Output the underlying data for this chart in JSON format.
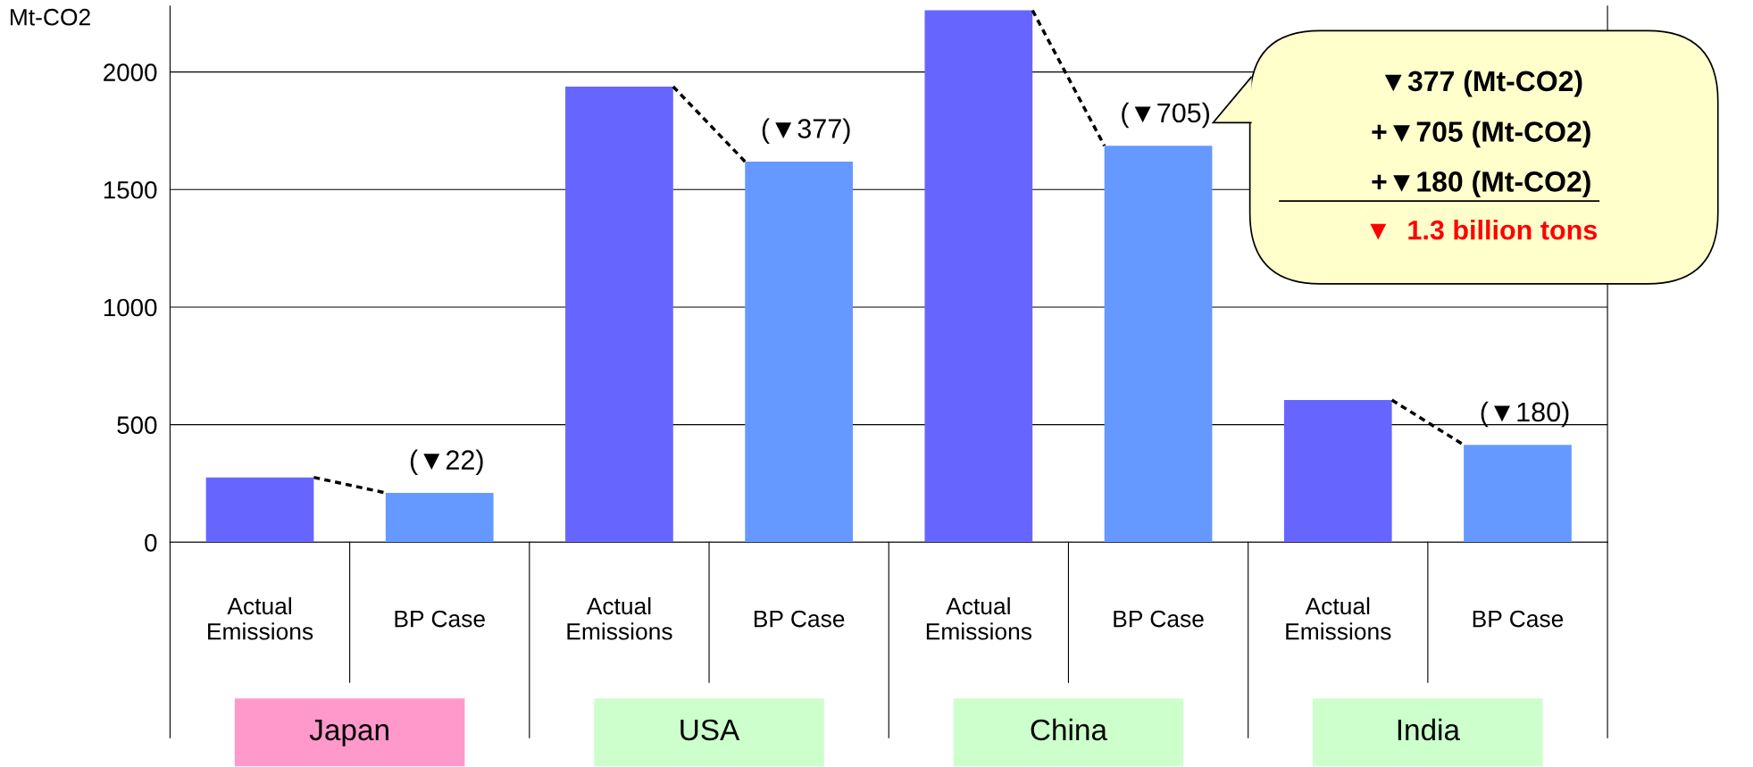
{
  "chart_data": {
    "type": "bar",
    "ylabel": "Mt-CO2",
    "categories": [
      "Japan",
      "USA",
      "China",
      "India"
    ],
    "series": [
      {
        "name": "Actual\nEmissions",
        "color": "#6666ff",
        "values": [
          276,
          1938,
          2262,
          605
        ]
      },
      {
        "name": "BP Case",
        "color": "#6699ff",
        "values": [
          210,
          1619,
          1686,
          414
        ]
      }
    ],
    "ylim": [
      0,
      2280
    ],
    "yticks": [
      0,
      500,
      1000,
      1500,
      2000
    ],
    "grid": "y",
    "legend": false,
    "annotations": [
      {
        "text": "(▼22)",
        "y": 210
      },
      {
        "text": "(▼377)",
        "y": 1619
      },
      {
        "text": "(▼705)",
        "y": 1686
      },
      {
        "text": "(▼180)",
        "y": 414
      },
      "▼377 (Mt-CO2)",
      "+▼705 (Mt-CO2)",
      "+▼180 (Mt-CO2)",
      "▼  1.3 billion tons"
    ]
  }
}
